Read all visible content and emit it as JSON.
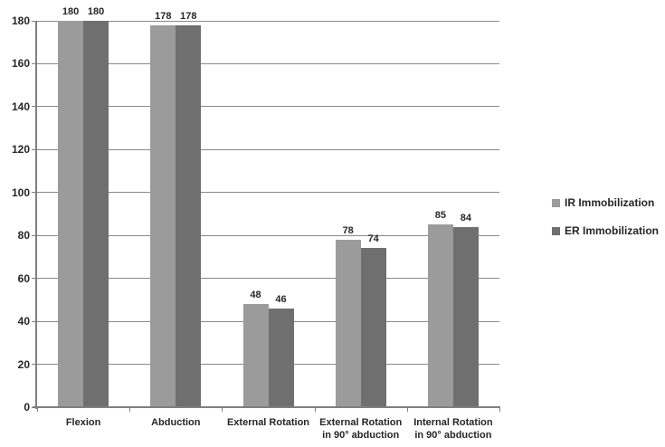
{
  "figure": {
    "background": "#ffffff"
  },
  "chart_data": {
    "type": "bar",
    "title": "",
    "xlabel": "",
    "ylabel": "",
    "categories": [
      "Flexion",
      "Abduction",
      "External Rotation",
      "External Rotation\nin 90° abduction",
      "Internal Rotation\nin 90° abduction"
    ],
    "series": [
      {
        "name": "IR Immobilization",
        "color": "#9b9b9b",
        "values": [
          180,
          178,
          48,
          78,
          85
        ]
      },
      {
        "name": "ER Immobilization",
        "color": "#6f6f6f",
        "values": [
          180,
          178,
          46,
          74,
          84
        ]
      }
    ],
    "yticks": [
      0,
      20,
      40,
      60,
      80,
      100,
      120,
      140,
      160,
      180
    ],
    "ylim": [
      0,
      180
    ],
    "grid": true,
    "legend_position": "right",
    "bar_value_labels": true,
    "colors": {
      "gridline": "#8a8a8a",
      "axis": "#7f7f7f",
      "text": "#262626"
    }
  }
}
